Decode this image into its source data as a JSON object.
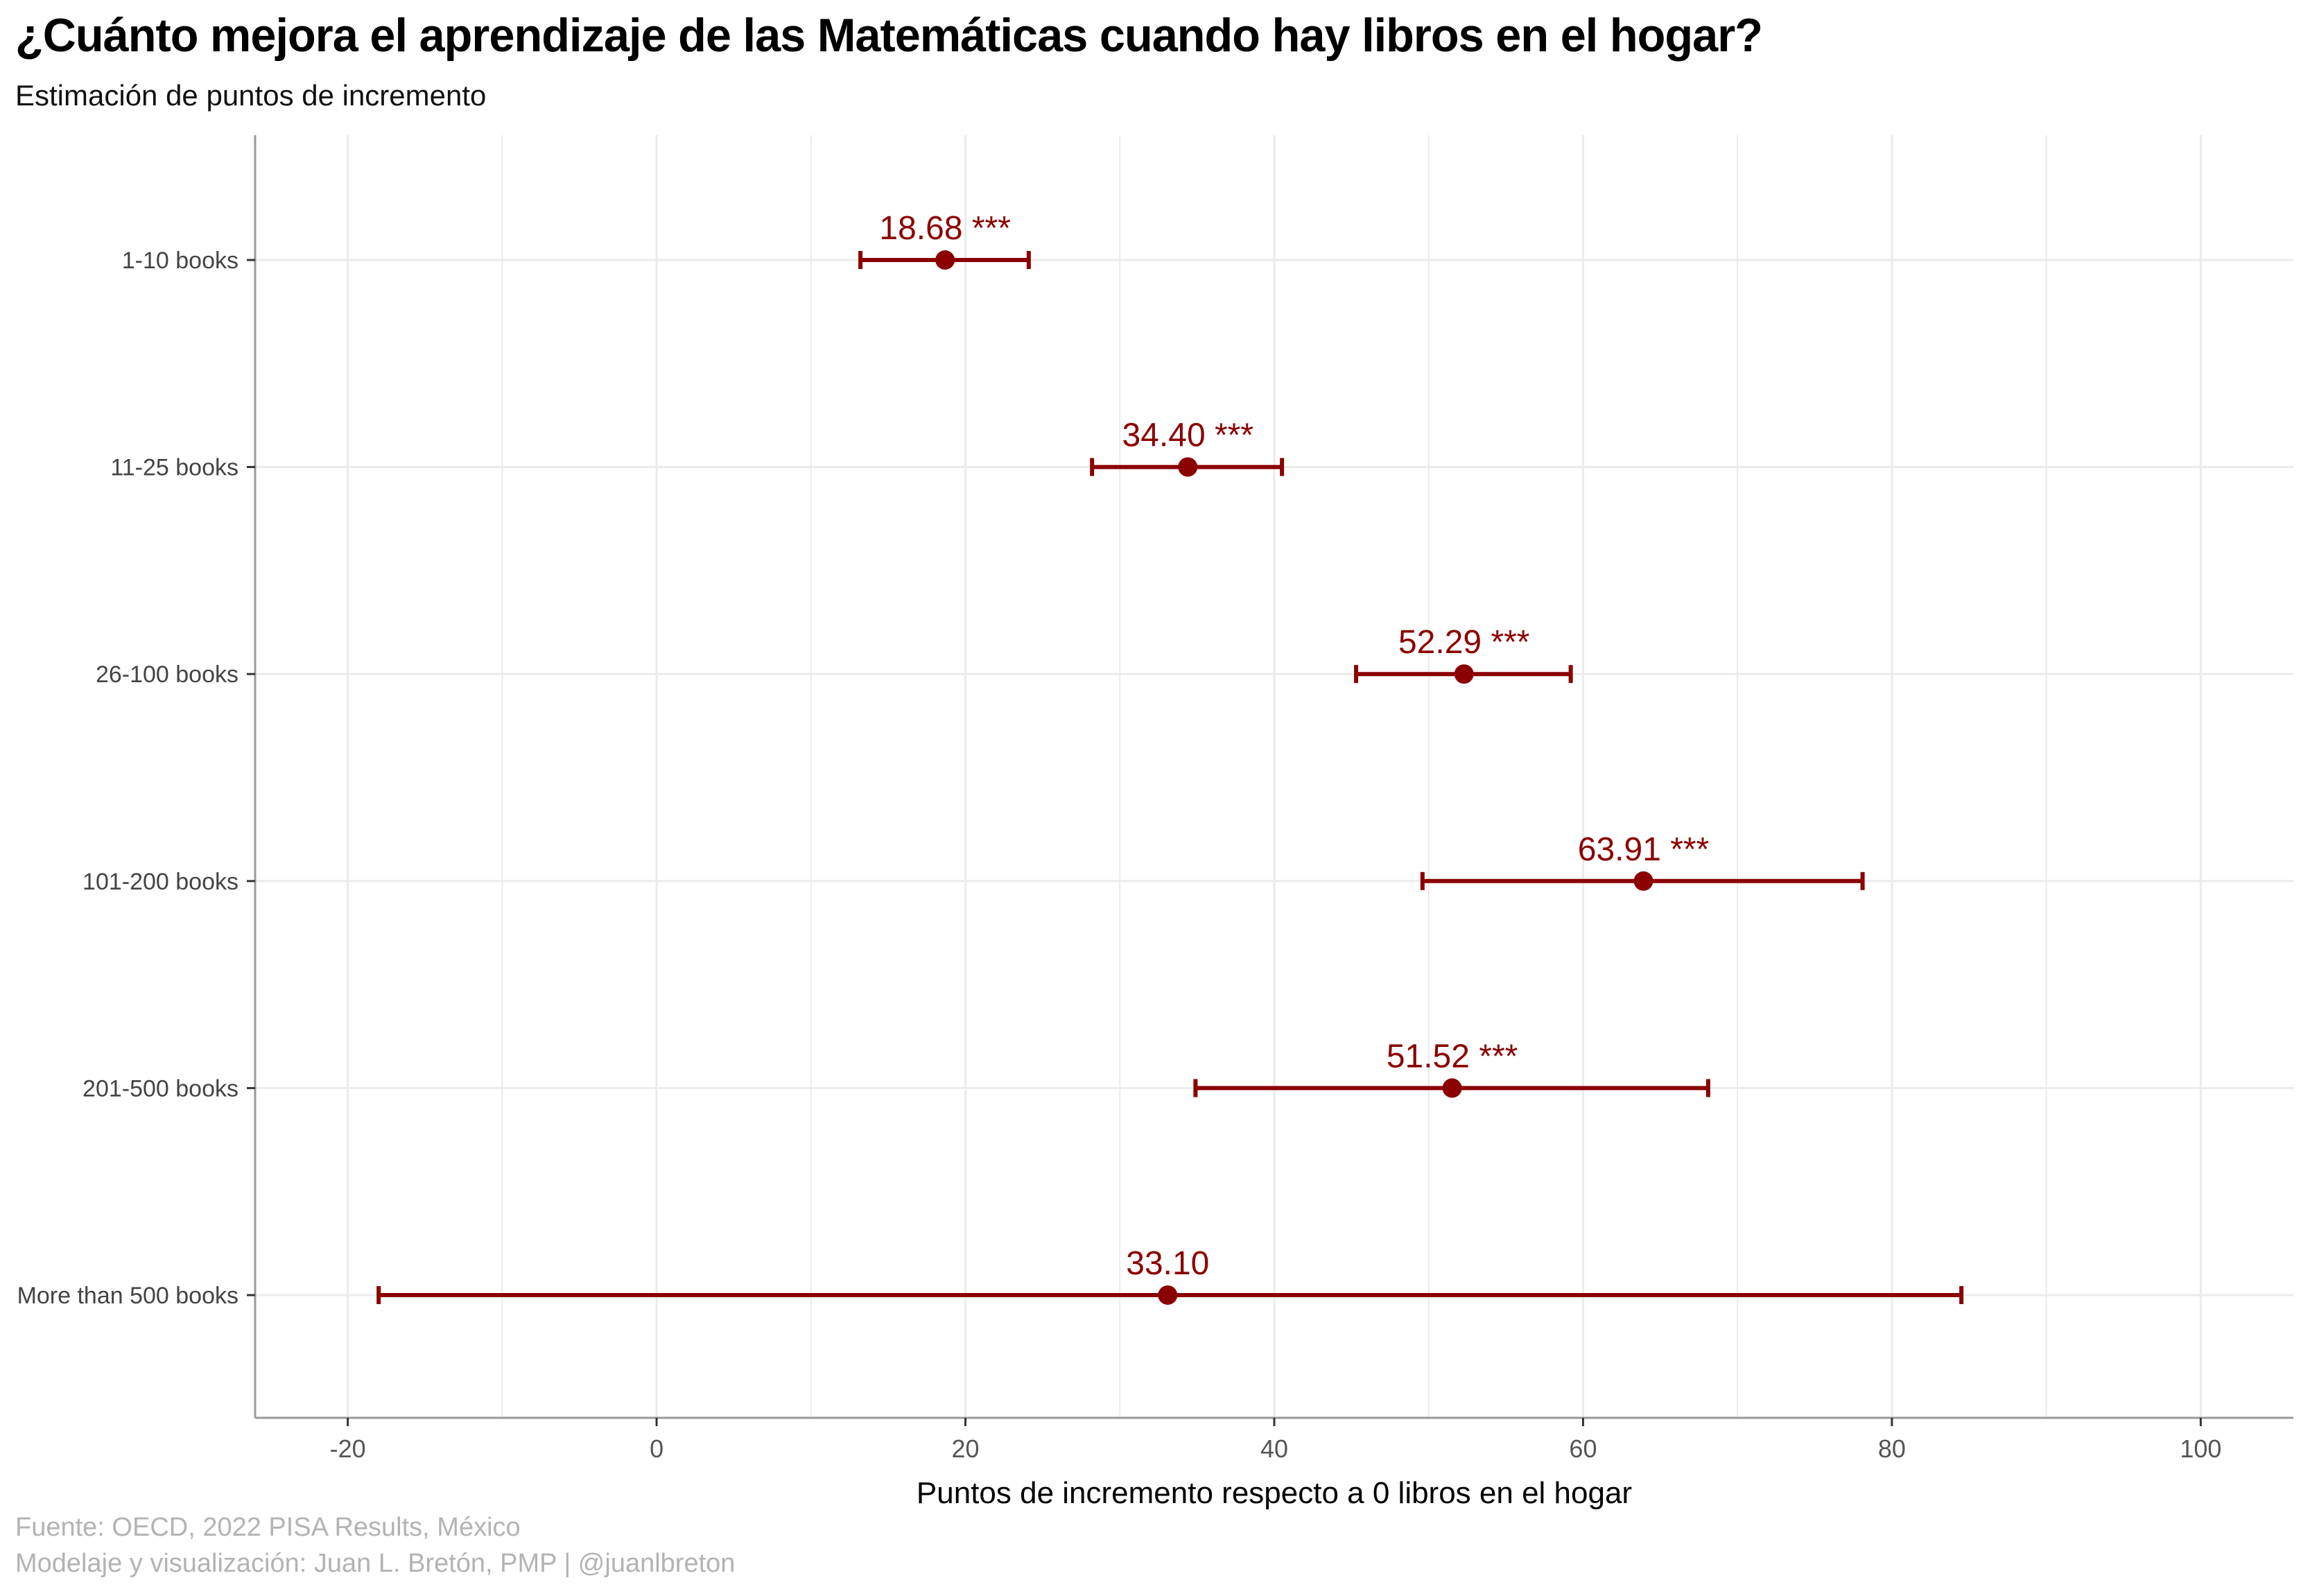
{
  "header": {
    "title": "¿Cuánto mejora el aprendizaje de las Matemáticas cuando hay libros en el hogar?",
    "subtitle": "Estimación de puntos de incremento"
  },
  "footer": {
    "source": "Fuente: OECD, 2022 PISA Results, México",
    "credit": "Modelaje y visualización: Juan L. Bretón, PMP | @juanlbreton"
  },
  "colors": {
    "accent": "#8b0000",
    "grid": "#ebebeb",
    "axis": "#999999"
  },
  "chart_data": {
    "type": "scatter",
    "subtype": "point-range",
    "orientation": "horizontal",
    "xlabel": "Puntos de incremento respecto a 0 libros en el hogar",
    "ylabel": "",
    "xlim": [
      -26,
      106
    ],
    "xticks": [
      "-20",
      "0",
      "20",
      "40",
      "60",
      "80",
      "100"
    ],
    "grid": true,
    "legend": "none",
    "categories": [
      "1-10 books",
      "11-25 books",
      "26-100 books",
      "101-200 books",
      "201-500 books",
      "More than 500 books"
    ],
    "estimates": [
      18.68,
      34.4,
      52.29,
      63.91,
      51.52,
      33.1
    ],
    "ci_low": [
      13.2,
      28.2,
      45.3,
      49.6,
      34.9,
      -18.0
    ],
    "ci_high": [
      24.1,
      40.5,
      59.2,
      78.1,
      68.1,
      84.5
    ],
    "labels": [
      "18.68 ***",
      "34.40 ***",
      "52.29 ***",
      "63.91 ***",
      "51.52 ***",
      "33.10"
    ]
  }
}
